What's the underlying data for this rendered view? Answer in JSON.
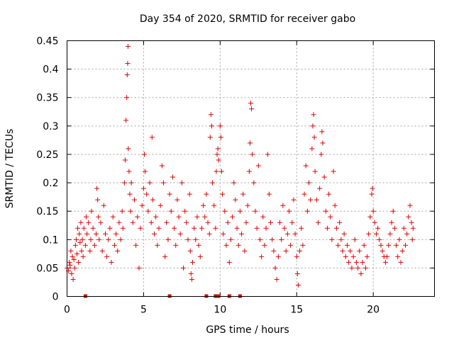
{
  "chart_data": {
    "type": "scatter",
    "title": "Day 354 of 2020, SRMTID for receiver gabo",
    "xlabel": "GPS time / hours",
    "ylabel": "SRMTID / TECUs",
    "xlim": [
      0,
      24
    ],
    "ylim": [
      0,
      0.45
    ],
    "x_ticks": [
      0,
      5,
      10,
      15,
      20
    ],
    "x_tick_labels": [
      "0",
      "5",
      "10",
      "15",
      "20"
    ],
    "y_ticks": [
      0,
      0.05,
      0.1,
      0.15,
      0.2,
      0.25,
      0.3,
      0.35,
      0.4,
      0.45
    ],
    "y_tick_labels": [
      "0",
      "0.05",
      "0.1",
      "0.15",
      "0.2",
      "0.25",
      "0.3",
      "0.35",
      "0.4",
      "0.45"
    ],
    "grid": true,
    "marker": "+",
    "color": "#e00000",
    "series": [
      {
        "name": "SRMTID",
        "points": [
          [
            0.0,
            0.05
          ],
          [
            0.1,
            0.045
          ],
          [
            0.15,
            0.06
          ],
          [
            0.2,
            0.055
          ],
          [
            0.25,
            0.08
          ],
          [
            0.3,
            0.04
          ],
          [
            0.35,
            0.07
          ],
          [
            0.4,
            0.03
          ],
          [
            0.45,
            0.065
          ],
          [
            0.5,
            0.05
          ],
          [
            0.55,
            0.09
          ],
          [
            0.6,
            0.1
          ],
          [
            0.65,
            0.075
          ],
          [
            0.7,
            0.12
          ],
          [
            0.75,
            0.06
          ],
          [
            0.8,
            0.11
          ],
          [
            0.85,
            0.095
          ],
          [
            0.9,
            0.13
          ],
          [
            0.95,
            0.08
          ],
          [
            1.0,
            0.1
          ],
          [
            1.05,
            0.07
          ],
          [
            1.1,
            0.12
          ],
          [
            1.2,
            0.09
          ],
          [
            1.25,
            0.14
          ],
          [
            1.3,
            0.11
          ],
          [
            1.4,
            0.13
          ],
          [
            1.5,
            0.08
          ],
          [
            1.55,
            0.1
          ],
          [
            1.6,
            0.15
          ],
          [
            1.7,
            0.12
          ],
          [
            1.8,
            0.09
          ],
          [
            1.9,
            0.11
          ],
          [
            1.95,
            0.19
          ],
          [
            2.0,
            0.17
          ],
          [
            2.05,
            0.14
          ],
          [
            2.1,
            0.1
          ],
          [
            2.2,
            0.13
          ],
          [
            2.3,
            0.08
          ],
          [
            2.4,
            0.16
          ],
          [
            2.5,
            0.11
          ],
          [
            2.6,
            0.07
          ],
          [
            2.7,
            0.1
          ],
          [
            2.8,
            0.12
          ],
          [
            2.9,
            0.06
          ],
          [
            3.0,
            0.14
          ],
          [
            3.1,
            0.09
          ],
          [
            3.2,
            0.11
          ],
          [
            3.3,
            0.08
          ],
          [
            3.4,
            0.13
          ],
          [
            3.5,
            0.1
          ],
          [
            3.6,
            0.15
          ],
          [
            3.65,
            0.12
          ],
          [
            3.75,
            0.2
          ],
          [
            3.8,
            0.24
          ],
          [
            3.85,
            0.31
          ],
          [
            3.9,
            0.35
          ],
          [
            3.93,
            0.39
          ],
          [
            3.96,
            0.41
          ],
          [
            3.98,
            0.44
          ],
          [
            4.0,
            0.26
          ],
          [
            4.05,
            0.22
          ],
          [
            4.1,
            0.18
          ],
          [
            4.15,
            0.15
          ],
          [
            4.2,
            0.2
          ],
          [
            4.3,
            0.13
          ],
          [
            4.4,
            0.17
          ],
          [
            4.5,
            0.09
          ],
          [
            4.6,
            0.14
          ],
          [
            4.7,
            0.05
          ],
          [
            4.8,
            0.12
          ],
          [
            4.9,
            0.16
          ],
          [
            5.0,
            0.19
          ],
          [
            5.05,
            0.25
          ],
          [
            5.1,
            0.22
          ],
          [
            5.2,
            0.18
          ],
          [
            5.3,
            0.15
          ],
          [
            5.4,
            0.2
          ],
          [
            5.5,
            0.13
          ],
          [
            5.55,
            0.28
          ],
          [
            5.6,
            0.17
          ],
          [
            5.7,
            0.11
          ],
          [
            5.8,
            0.14
          ],
          [
            5.9,
            0.09
          ],
          [
            6.0,
            0.12
          ],
          [
            6.1,
            0.16
          ],
          [
            6.2,
            0.23
          ],
          [
            6.3,
            0.2
          ],
          [
            6.4,
            0.07
          ],
          [
            6.5,
            0.13
          ],
          [
            6.6,
            0.1
          ],
          [
            6.7,
            0.18
          ],
          [
            6.8,
            0.15
          ],
          [
            6.9,
            0.21
          ],
          [
            7.0,
            0.12
          ],
          [
            7.1,
            0.09
          ],
          [
            7.2,
            0.17
          ],
          [
            7.3,
            0.14
          ],
          [
            7.4,
            0.11
          ],
          [
            7.5,
            0.2
          ],
          [
            7.6,
            0.05
          ],
          [
            7.7,
            0.15
          ],
          [
            7.8,
            0.13
          ],
          [
            7.9,
            0.1
          ],
          [
            8.0,
            0.18
          ],
          [
            8.05,
            0.08
          ],
          [
            8.1,
            0.04
          ],
          [
            8.15,
            0.03
          ],
          [
            8.2,
            0.06
          ],
          [
            8.3,
            0.12
          ],
          [
            8.4,
            0.1
          ],
          [
            8.5,
            0.14
          ],
          [
            8.6,
            0.09
          ],
          [
            8.7,
            0.07
          ],
          [
            8.8,
            0.12
          ],
          [
            8.9,
            0.16
          ],
          [
            9.0,
            0.14
          ],
          [
            9.1,
            0.18
          ],
          [
            9.2,
            0.13
          ],
          [
            9.3,
            0.11
          ],
          [
            9.35,
            0.28
          ],
          [
            9.4,
            0.32
          ],
          [
            9.45,
            0.3
          ],
          [
            9.5,
            0.2
          ],
          [
            9.6,
            0.16
          ],
          [
            9.7,
            0.12
          ],
          [
            9.75,
            0.22
          ],
          [
            9.8,
            0.25
          ],
          [
            9.85,
            0.26
          ],
          [
            9.9,
            0.24
          ],
          [
            10.0,
            0.3
          ],
          [
            10.05,
            0.28
          ],
          [
            10.1,
            0.22
          ],
          [
            10.15,
            0.18
          ],
          [
            10.2,
            0.11
          ],
          [
            10.3,
            0.15
          ],
          [
            10.4,
            0.09
          ],
          [
            10.5,
            0.13
          ],
          [
            10.6,
            0.06
          ],
          [
            10.7,
            0.1
          ],
          [
            10.8,
            0.14
          ],
          [
            10.9,
            0.2
          ],
          [
            11.0,
            0.17
          ],
          [
            11.1,
            0.12
          ],
          [
            11.2,
            0.09
          ],
          [
            11.3,
            0.15
          ],
          [
            11.4,
            0.11
          ],
          [
            11.5,
            0.18
          ],
          [
            11.6,
            0.08
          ],
          [
            11.7,
            0.13
          ],
          [
            11.8,
            0.16
          ],
          [
            11.9,
            0.22
          ],
          [
            11.95,
            0.27
          ],
          [
            12.0,
            0.34
          ],
          [
            12.05,
            0.33
          ],
          [
            12.1,
            0.25
          ],
          [
            12.2,
            0.2
          ],
          [
            12.3,
            0.15
          ],
          [
            12.4,
            0.12
          ],
          [
            12.5,
            0.23
          ],
          [
            12.6,
            0.1
          ],
          [
            12.7,
            0.07
          ],
          [
            12.8,
            0.14
          ],
          [
            12.9,
            0.09
          ],
          [
            13.0,
            0.12
          ],
          [
            13.1,
            0.25
          ],
          [
            13.2,
            0.18
          ],
          [
            13.3,
            0.13
          ],
          [
            13.4,
            0.1
          ],
          [
            13.5,
            0.08
          ],
          [
            13.6,
            0.05
          ],
          [
            13.7,
            0.03
          ],
          [
            13.8,
            0.07
          ],
          [
            13.9,
            0.13
          ],
          [
            14.0,
            0.1
          ],
          [
            14.1,
            0.16
          ],
          [
            14.2,
            0.12
          ],
          [
            14.3,
            0.08
          ],
          [
            14.4,
            0.11
          ],
          [
            14.5,
            0.15
          ],
          [
            14.6,
            0.09
          ],
          [
            14.7,
            0.13
          ],
          [
            14.8,
            0.17
          ],
          [
            14.9,
            0.11
          ],
          [
            15.0,
            0.07
          ],
          [
            15.05,
            0.04
          ],
          [
            15.1,
            0.02
          ],
          [
            15.2,
            0.08
          ],
          [
            15.3,
            0.12
          ],
          [
            15.4,
            0.09
          ],
          [
            15.5,
            0.18
          ],
          [
            15.6,
            0.23
          ],
          [
            15.7,
            0.15
          ],
          [
            15.8,
            0.2
          ],
          [
            15.9,
            0.17
          ],
          [
            16.0,
            0.26
          ],
          [
            16.05,
            0.3
          ],
          [
            16.1,
            0.32
          ],
          [
            16.15,
            0.28
          ],
          [
            16.2,
            0.22
          ],
          [
            16.3,
            0.17
          ],
          [
            16.4,
            0.13
          ],
          [
            16.5,
            0.19
          ],
          [
            16.6,
            0.25
          ],
          [
            16.65,
            0.29
          ],
          [
            16.7,
            0.27
          ],
          [
            16.8,
            0.21
          ],
          [
            16.9,
            0.15
          ],
          [
            17.0,
            0.12
          ],
          [
            17.1,
            0.18
          ],
          [
            17.2,
            0.14
          ],
          [
            17.3,
            0.1
          ],
          [
            17.4,
            0.22
          ],
          [
            17.5,
            0.16
          ],
          [
            17.6,
            0.12
          ],
          [
            17.7,
            0.09
          ],
          [
            17.8,
            0.13
          ],
          [
            17.9,
            0.1
          ],
          [
            18.0,
            0.08
          ],
          [
            18.1,
            0.11
          ],
          [
            18.2,
            0.07
          ],
          [
            18.3,
            0.09
          ],
          [
            18.4,
            0.06
          ],
          [
            18.5,
            0.08
          ],
          [
            18.6,
            0.05
          ],
          [
            18.7,
            0.07
          ],
          [
            18.8,
            0.1
          ],
          [
            18.9,
            0.06
          ],
          [
            19.0,
            0.05
          ],
          [
            19.1,
            0.08
          ],
          [
            19.2,
            0.04
          ],
          [
            19.3,
            0.06
          ],
          [
            19.4,
            0.09
          ],
          [
            19.5,
            0.05
          ],
          [
            19.6,
            0.07
          ],
          [
            19.7,
            0.11
          ],
          [
            19.8,
            0.14
          ],
          [
            19.9,
            0.18
          ],
          [
            19.95,
            0.19
          ],
          [
            20.0,
            0.15
          ],
          [
            20.1,
            0.13
          ],
          [
            20.2,
            0.11
          ],
          [
            20.3,
            0.12
          ],
          [
            20.4,
            0.1
          ],
          [
            20.5,
            0.09
          ],
          [
            20.6,
            0.08
          ],
          [
            20.7,
            0.07
          ],
          [
            20.8,
            0.06
          ],
          [
            20.9,
            0.07
          ],
          [
            21.0,
            0.09
          ],
          [
            21.1,
            0.11
          ],
          [
            21.2,
            0.13
          ],
          [
            21.3,
            0.15
          ],
          [
            21.4,
            0.12
          ],
          [
            21.5,
            0.09
          ],
          [
            21.6,
            0.07
          ],
          [
            21.7,
            0.1
          ],
          [
            21.8,
            0.06
          ],
          [
            21.9,
            0.08
          ],
          [
            22.0,
            0.12
          ],
          [
            22.1,
            0.09
          ],
          [
            22.2,
            0.11
          ],
          [
            22.3,
            0.14
          ],
          [
            22.4,
            0.16
          ],
          [
            22.5,
            0.13
          ],
          [
            22.55,
            0.1
          ],
          [
            22.6,
            0.12
          ]
        ]
      }
    ],
    "gap_markers": [
      [
        1.2,
        0
      ],
      [
        6.7,
        0
      ],
      [
        9.1,
        0
      ],
      [
        9.7,
        0
      ],
      [
        9.9,
        0
      ],
      [
        10.6,
        0
      ],
      [
        11.3,
        0
      ]
    ]
  }
}
